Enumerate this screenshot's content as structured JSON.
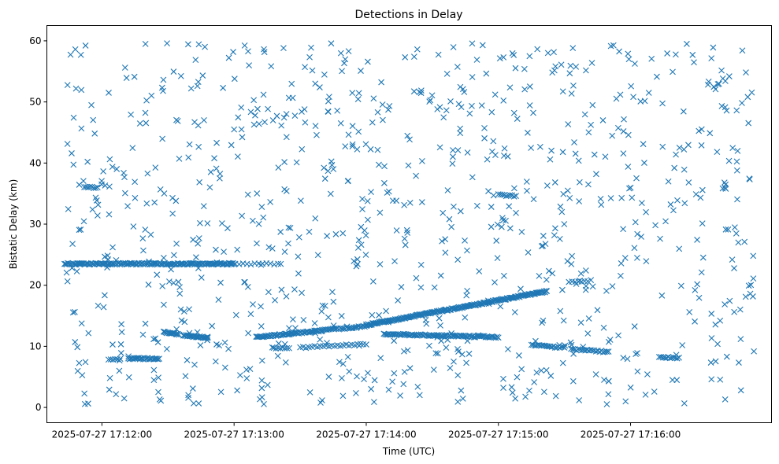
{
  "chart_data": {
    "type": "scatter",
    "title": "Detections in Delay",
    "xlabel": "Time (UTC)",
    "ylabel": "Bistatic Delay (km)",
    "x_start": "2025-07-27 17:11:43",
    "x_end": "2025-07-27 17:16:56",
    "xlim": [
      "2025-07-27 17:11:35",
      "2025-07-27 17:17:04"
    ],
    "ylim": [
      -2.5,
      62.5
    ],
    "x_ticks": [
      "2025-07-27 17:12:00",
      "2025-07-27 17:13:00",
      "2025-07-27 17:14:00",
      "2025-07-27 17:15:00",
      "2025-07-27 17:16:00"
    ],
    "y_ticks": [
      "0",
      "10",
      "20",
      "30",
      "40",
      "50",
      "60"
    ],
    "marker": "x",
    "grid": false,
    "legend": "none",
    "color": "#1f77b4",
    "tracks": [
      {
        "x_start": "2025-07-27 17:11:43",
        "x_end": "2025-07-27 17:13:00",
        "y_start": 23.5,
        "y_end": 23.5,
        "count": 160
      },
      {
        "x_start": "2025-07-27 17:11:52",
        "x_end": "2025-07-27 17:11:58",
        "y_start": 36.0,
        "y_end": 36.0,
        "count": 8
      },
      {
        "x_start": "2025-07-27 17:12:03",
        "x_end": "2025-07-27 17:12:08",
        "y_start": 7.8,
        "y_end": 7.8,
        "count": 6
      },
      {
        "x_start": "2025-07-27 17:12:12",
        "x_end": "2025-07-27 17:12:26",
        "y_start": 8.0,
        "y_end": 8.0,
        "count": 28
      },
      {
        "x_start": "2025-07-27 17:12:28",
        "x_end": "2025-07-27 17:12:35",
        "y_start": 12.3,
        "y_end": 12.0,
        "count": 16
      },
      {
        "x_start": "2025-07-27 17:12:37",
        "x_end": "2025-07-27 17:12:48",
        "y_start": 11.8,
        "y_end": 11.4,
        "count": 26
      },
      {
        "x_start": "2025-07-27 17:12:57",
        "x_end": "2025-07-27 17:13:20",
        "y_start": 23.5,
        "y_end": 23.5,
        "count": 14
      },
      {
        "x_start": "2025-07-27 17:13:10",
        "x_end": "2025-07-27 17:13:40",
        "y_start": 11.5,
        "y_end": 12.6,
        "count": 60
      },
      {
        "x_start": "2025-07-27 17:13:18",
        "x_end": "2025-07-27 17:13:25",
        "y_start": 9.7,
        "y_end": 9.7,
        "count": 8
      },
      {
        "x_start": "2025-07-27 17:13:40",
        "x_end": "2025-07-27 17:14:00",
        "y_start": 12.6,
        "y_end": 13.3,
        "count": 30
      },
      {
        "x_start": "2025-07-27 17:13:30",
        "x_end": "2025-07-27 17:14:00",
        "y_start": 9.8,
        "y_end": 10.4,
        "count": 24
      },
      {
        "x_start": "2025-07-27 17:14:00",
        "x_end": "2025-07-27 17:15:22",
        "y_start": 13.5,
        "y_end": 19.0,
        "count": 200
      },
      {
        "x_start": "2025-07-27 17:14:08",
        "x_end": "2025-07-27 17:15:00",
        "y_start": 12.0,
        "y_end": 11.5,
        "count": 90
      },
      {
        "x_start": "2025-07-27 17:15:00",
        "x_end": "2025-07-27 17:15:08",
        "y_start": 34.8,
        "y_end": 34.6,
        "count": 10
      },
      {
        "x_start": "2025-07-27 17:15:15",
        "x_end": "2025-07-27 17:15:30",
        "y_start": 10.2,
        "y_end": 9.8,
        "count": 22
      },
      {
        "x_start": "2025-07-27 17:15:33",
        "x_end": "2025-07-27 17:15:50",
        "y_start": 9.5,
        "y_end": 9.1,
        "count": 22
      },
      {
        "x_start": "2025-07-27 17:15:32",
        "x_end": "2025-07-27 17:15:42",
        "y_start": 20.5,
        "y_end": 20.8,
        "count": 8
      },
      {
        "x_start": "2025-07-27 17:16:13",
        "x_end": "2025-07-27 17:16:22",
        "y_start": 8.3,
        "y_end": 8.1,
        "count": 12
      }
    ],
    "clutter": {
      "count": 900,
      "y_range": [
        0.5,
        59.8
      ]
    }
  }
}
